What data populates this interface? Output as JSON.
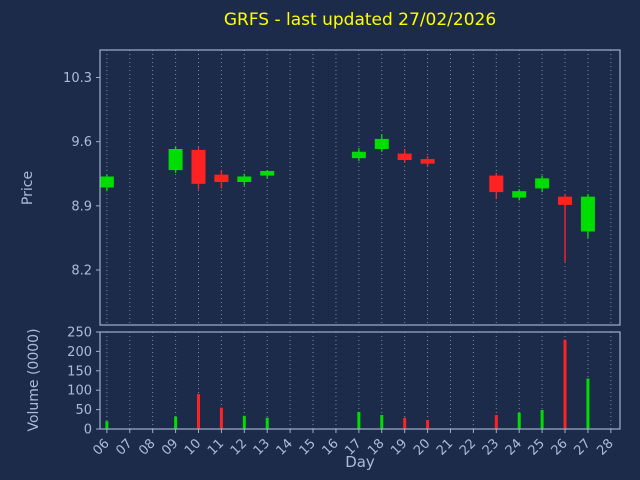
{
  "title": "GRFS - last updated 27/02/2026",
  "colors": {
    "background": "#1d2b4a",
    "title": "#ffff00",
    "axis_text": "#a9bcd8",
    "spine": "#9db0cc",
    "grid": "#7d8ba1",
    "up": "#00dd00",
    "down": "#ff2222"
  },
  "price_axis": {
    "label": "Price",
    "ticks": [
      10.3,
      9.6,
      8.9,
      8.2
    ],
    "ylim": [
      7.6,
      10.6
    ]
  },
  "volume_axis": {
    "label": "Volume (0000)",
    "ticks": [
      250,
      200,
      150,
      100,
      50,
      0
    ],
    "ylim": [
      0,
      250
    ]
  },
  "x_axis": {
    "label": "Day",
    "ticks": [
      "06",
      "07",
      "08",
      "09",
      "10",
      "11",
      "12",
      "13",
      "14",
      "15",
      "16",
      "17",
      "18",
      "19",
      "20",
      "21",
      "22",
      "23",
      "24",
      "25",
      "26",
      "27",
      "28"
    ]
  },
  "chart_data": {
    "type": "candlestick",
    "title": "GRFS - last updated 27/02/2026",
    "xlabel": "Day",
    "ylabel_price": "Price",
    "ylabel_volume": "Volume (0000)",
    "xlim": [
      5.7,
      28.4
    ],
    "grid": "vertical-dotted",
    "legend": "none",
    "points": [
      {
        "day": 6,
        "open": 9.1,
        "high": 9.24,
        "low": 9.06,
        "close": 9.22,
        "volume": 20
      },
      {
        "day": 9,
        "open": 9.29,
        "high": 9.55,
        "low": 9.26,
        "close": 9.52,
        "volume": 32
      },
      {
        "day": 10,
        "open": 9.51,
        "high": 9.54,
        "low": 9.08,
        "close": 9.14,
        "volume": 90
      },
      {
        "day": 11,
        "open": 9.24,
        "high": 9.29,
        "low": 9.09,
        "close": 9.16,
        "volume": 55
      },
      {
        "day": 12,
        "open": 9.16,
        "high": 9.25,
        "low": 9.12,
        "close": 9.22,
        "volume": 34
      },
      {
        "day": 13,
        "open": 9.23,
        "high": 9.29,
        "low": 9.2,
        "close": 9.28,
        "volume": 29
      },
      {
        "day": 17,
        "open": 9.42,
        "high": 9.53,
        "low": 9.39,
        "close": 9.49,
        "volume": 44
      },
      {
        "day": 18,
        "open": 9.52,
        "high": 9.68,
        "low": 9.49,
        "close": 9.63,
        "volume": 36
      },
      {
        "day": 19,
        "open": 9.47,
        "high": 9.52,
        "low": 9.37,
        "close": 9.4,
        "volume": 29
      },
      {
        "day": 20,
        "open": 9.41,
        "high": 9.44,
        "low": 9.33,
        "close": 9.36,
        "volume": 23
      },
      {
        "day": 23,
        "open": 9.23,
        "high": 9.26,
        "low": 8.98,
        "close": 9.05,
        "volume": 36
      },
      {
        "day": 24,
        "open": 8.99,
        "high": 9.08,
        "low": 8.96,
        "close": 9.06,
        "volume": 42
      },
      {
        "day": 25,
        "open": 9.09,
        "high": 9.23,
        "low": 9.05,
        "close": 9.2,
        "volume": 49
      },
      {
        "day": 26,
        "open": 9.0,
        "high": 9.03,
        "low": 8.29,
        "close": 8.91,
        "volume": 230
      },
      {
        "day": 27,
        "open": 8.62,
        "high": 9.03,
        "low": 8.55,
        "close": 9.0,
        "volume": 130
      }
    ]
  }
}
